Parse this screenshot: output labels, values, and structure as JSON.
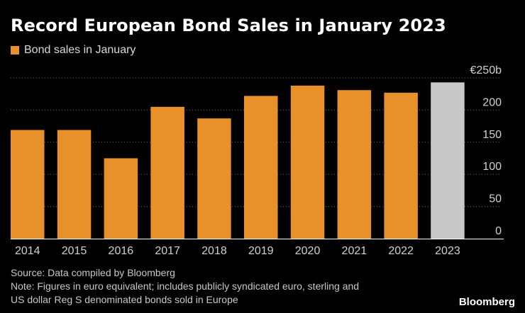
{
  "header": {
    "title": "Record European Bond Sales in January 2023"
  },
  "legend": {
    "label": "Bond sales in January"
  },
  "colors": {
    "bar": "#e8912a",
    "highlight": "#c8c8c8",
    "grid": "#666666",
    "axis": "#ffffff"
  },
  "chart_data": {
    "type": "bar",
    "title": "Record European Bond Sales in January 2023",
    "xlabel": "",
    "ylabel": "",
    "ylim": [
      0,
      250
    ],
    "yticks": [
      0,
      50,
      100,
      150,
      200,
      250
    ],
    "ytick_labels": [
      "0",
      "50",
      "100",
      "150",
      "200",
      "€250b"
    ],
    "categories": [
      "2014",
      "2015",
      "2016",
      "2017",
      "2018",
      "2019",
      "2020",
      "2021",
      "2022",
      "2023"
    ],
    "series": [
      {
        "name": "Bond sales in January",
        "values": [
          169,
          169,
          125,
          205,
          187,
          222,
          238,
          231,
          227,
          243
        ]
      }
    ],
    "highlighted_category": "2023",
    "grid": true,
    "legend_position": "top-left"
  },
  "footer": {
    "source": "Source: Data compiled by Bloomberg",
    "note_line1": "Note: Figures in euro equivalent; includes publicly syndicated euro, sterling and",
    "note_line2": "US dollar Reg S denominated bonds sold in Europe",
    "brand": "Bloomberg"
  }
}
